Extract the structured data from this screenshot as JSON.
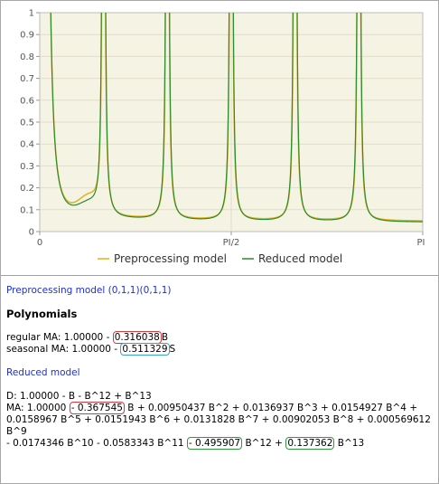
{
  "chart_data": {
    "type": "line",
    "x_ticks": [
      "0",
      "PI/2",
      "PI"
    ],
    "y_ticks": [
      "0",
      "0.1",
      "0.2",
      "0.3",
      "0.4",
      "0.5",
      "0.6",
      "0.7",
      "0.8",
      "0.9",
      "1"
    ],
    "xlim": [
      0,
      3.14159
    ],
    "ylim": [
      0,
      1
    ],
    "grid": true,
    "legend_position": "bottom",
    "series": [
      {
        "name": "Preprocessing model",
        "color": "#e0b21b"
      },
      {
        "name": "Reduced model",
        "color": "#2e8b2e"
      }
    ]
  },
  "text": {
    "preprocessing_title": "Preprocessing model (0,1,1)(0,1,1)",
    "polynomials_heading": "Polynomials",
    "regular_ma_prefix": "regular MA: 1.00000 - ",
    "regular_ma_coef": "0.316038",
    "regular_ma_suffix": "B",
    "seasonal_ma_prefix": "seasonal MA: 1.00000 - ",
    "seasonal_ma_coef": "0.511329",
    "seasonal_ma_suffix": "S",
    "reduced_title": "Reduced model",
    "d_line": "D: 1.00000 - B - B^12 + B^13",
    "ma_prefix": "MA: 1.00000 ",
    "ma_coef_1": "- 0.367545",
    "ma_line1_rest": " B + 0.00950437 B^2 + 0.0136937 B^3 + 0.0154927 B^4 +",
    "ma_line2": "0.0158967 B^5 + 0.0151943 B^6 + 0.0131828 B^7 + 0.00902053 B^8 + 0.000569612 B^9",
    "ma_line3_start": "- 0.0174346 B^10 - 0.0583343 B^11 ",
    "ma_coef_12": "- 0.495907",
    "ma_line3_mid": " B^12 + ",
    "ma_coef_13": "0.137362",
    "ma_line3_end": " B^13"
  }
}
